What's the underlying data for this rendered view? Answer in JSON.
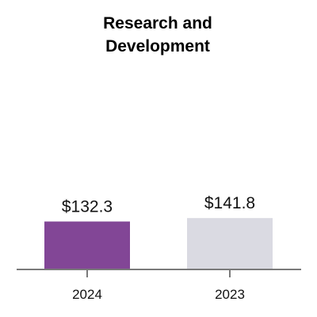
{
  "chart_data": {
    "type": "bar",
    "title_lines": [
      "Research and",
      "Development"
    ],
    "categories": [
      "2024",
      "2023"
    ],
    "values": [
      132.3,
      141.8
    ],
    "value_labels": [
      "$132.3",
      "$141.8"
    ],
    "bar_colors": [
      "#824696",
      "#dadae2"
    ],
    "xlabel": "",
    "ylabel": "",
    "grid": false,
    "legend": "none"
  },
  "colors": {
    "axis": "#7a7a7a",
    "text": "#111111"
  }
}
